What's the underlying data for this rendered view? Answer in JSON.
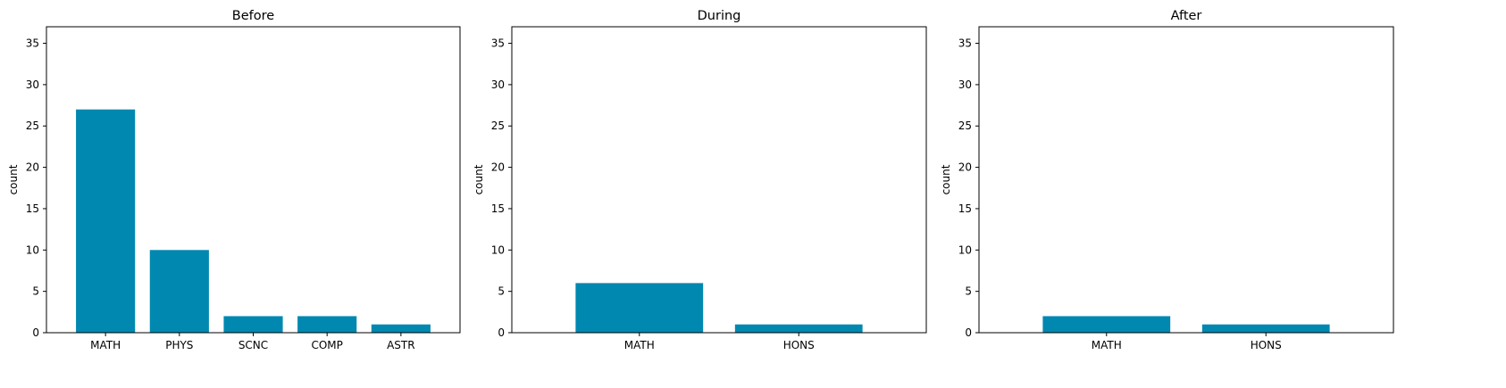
{
  "colors": {
    "bar": "#0088b0",
    "axis": "#000000",
    "background": "#ffffff"
  },
  "chart_data": [
    {
      "type": "bar",
      "title": "Before",
      "xlabel": "",
      "ylabel": "count",
      "ylim": [
        0,
        37
      ],
      "yticks": [
        0,
        5,
        10,
        15,
        20,
        25,
        30,
        35
      ],
      "grid": false,
      "categories": [
        "MATH",
        "PHYS",
        "SCNC",
        "COMP",
        "ASTR"
      ],
      "values": [
        27,
        10,
        2,
        2,
        1
      ]
    },
    {
      "type": "bar",
      "title": "During",
      "xlabel": "",
      "ylabel": "count",
      "ylim": [
        0,
        37
      ],
      "yticks": [
        0,
        5,
        10,
        15,
        20,
        25,
        30,
        35
      ],
      "grid": false,
      "categories": [
        "MATH",
        "HONS"
      ],
      "values": [
        6,
        1
      ]
    },
    {
      "type": "bar",
      "title": "After",
      "xlabel": "",
      "ylabel": "count",
      "ylim": [
        0,
        37
      ],
      "yticks": [
        0,
        5,
        10,
        15,
        20,
        25,
        30,
        35
      ],
      "grid": false,
      "categories": [
        "MATH",
        "HONS"
      ],
      "values": [
        2,
        1
      ]
    }
  ]
}
